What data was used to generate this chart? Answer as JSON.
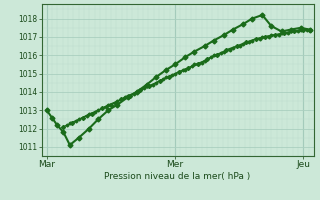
{
  "background_color": "#cce8d8",
  "plot_bg_color": "#cce8d8",
  "grid_color_major": "#aacfbf",
  "grid_color_minor": "#bbdacc",
  "line_color": "#1a6b1a",
  "xlabel": "Pression niveau de la mer( hPa )",
  "xtick_labels": [
    "Mar",
    "Mer",
    "Jeu"
  ],
  "xtick_pos": [
    0.0,
    1.0,
    2.0
  ],
  "ylim": [
    1010.5,
    1018.8
  ],
  "yticks": [
    1011,
    1012,
    1013,
    1014,
    1015,
    1016,
    1017,
    1018
  ],
  "xlim": [
    -0.04,
    2.08
  ],
  "series": [
    {
      "x": [
        0.0,
        0.04,
        0.08,
        0.13,
        0.18,
        0.25,
        0.33,
        0.4,
        0.48,
        0.55,
        0.63,
        0.7,
        0.78,
        0.85,
        0.93,
        1.0,
        1.08,
        1.15,
        1.23,
        1.3,
        1.38,
        1.45,
        1.53,
        1.6,
        1.68,
        1.75,
        1.83,
        1.9,
        1.98,
        2.05
      ],
      "y": [
        1013.0,
        1012.6,
        1012.2,
        1011.8,
        1011.1,
        1011.5,
        1012.0,
        1012.5,
        1013.0,
        1013.3,
        1013.7,
        1014.0,
        1014.4,
        1014.8,
        1015.2,
        1015.5,
        1015.9,
        1016.2,
        1016.5,
        1016.8,
        1017.1,
        1017.4,
        1017.7,
        1018.0,
        1018.2,
        1017.6,
        1017.3,
        1017.4,
        1017.5,
        1017.4
      ],
      "linestyle": "-",
      "marker": "D",
      "markersize": 2.5,
      "linewidth": 1.5,
      "zorder": 5
    },
    {
      "x": [
        0.13,
        0.2,
        0.28,
        0.35,
        0.43,
        0.5,
        0.58,
        0.65,
        0.73,
        0.8,
        0.88,
        0.95,
        1.03,
        1.1,
        1.18,
        1.25,
        1.33,
        1.4,
        1.48,
        1.55,
        1.63,
        1.7,
        1.78,
        1.85,
        1.93,
        2.0,
        2.05
      ],
      "y": [
        1012.1,
        1012.3,
        1012.6,
        1012.8,
        1013.1,
        1013.3,
        1013.6,
        1013.8,
        1014.1,
        1014.3,
        1014.6,
        1014.8,
        1015.1,
        1015.3,
        1015.5,
        1015.8,
        1016.0,
        1016.3,
        1016.5,
        1016.7,
        1016.9,
        1017.0,
        1017.1,
        1017.2,
        1017.3,
        1017.4,
        1017.4
      ],
      "linestyle": "-",
      "marker": "D",
      "markersize": 2.0,
      "linewidth": 1.0,
      "zorder": 4
    },
    {
      "x": [
        0.16,
        0.23,
        0.31,
        0.38,
        0.46,
        0.53,
        0.61,
        0.68,
        0.76,
        0.83,
        0.91,
        0.98,
        1.06,
        1.13,
        1.21,
        1.28,
        1.36,
        1.43,
        1.51,
        1.58,
        1.66,
        1.73,
        1.81,
        1.88,
        1.96,
        2.03
      ],
      "y": [
        1012.2,
        1012.4,
        1012.7,
        1012.9,
        1013.2,
        1013.4,
        1013.7,
        1013.9,
        1014.2,
        1014.4,
        1014.7,
        1014.9,
        1015.2,
        1015.4,
        1015.6,
        1015.9,
        1016.1,
        1016.3,
        1016.5,
        1016.7,
        1016.9,
        1017.0,
        1017.1,
        1017.2,
        1017.3,
        1017.4
      ],
      "linestyle": "--",
      "marker": "D",
      "markersize": 1.5,
      "linewidth": 0.7,
      "zorder": 3
    },
    {
      "x": [
        0.18,
        0.25,
        0.33,
        0.4,
        0.48,
        0.55,
        0.63,
        0.7,
        0.78,
        0.85,
        0.93,
        1.0,
        1.08,
        1.15,
        1.23,
        1.3,
        1.38,
        1.45,
        1.53,
        1.6,
        1.68,
        1.75,
        1.83,
        1.9,
        1.98,
        2.05
      ],
      "y": [
        1012.3,
        1012.5,
        1012.8,
        1013.0,
        1013.3,
        1013.5,
        1013.8,
        1014.0,
        1014.3,
        1014.5,
        1014.8,
        1015.0,
        1015.2,
        1015.5,
        1015.7,
        1016.0,
        1016.2,
        1016.4,
        1016.6,
        1016.8,
        1017.0,
        1017.1,
        1017.2,
        1017.3,
        1017.4,
        1017.4
      ],
      "linestyle": "-",
      "marker": "D",
      "markersize": 1.5,
      "linewidth": 0.7,
      "zorder": 3
    }
  ]
}
